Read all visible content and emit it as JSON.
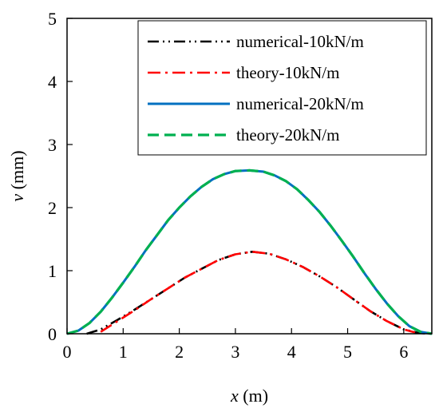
{
  "chart_data": {
    "type": "line",
    "title": "",
    "xlabel": {
      "var": "x",
      "unit": " (m)"
    },
    "ylabel": {
      "var": "v",
      "unit": " (mm)"
    },
    "xlim": [
      0,
      6.5
    ],
    "ylim": [
      0,
      5
    ],
    "xticks": [
      "0",
      "1",
      "2",
      "3",
      "4",
      "5",
      "6"
    ],
    "yticks": [
      "0",
      "1",
      "2",
      "3",
      "4",
      "5"
    ],
    "grid": false,
    "legend_position": "top-right",
    "series": [
      {
        "name": "numerical-10kN/m",
        "color": "#000000",
        "style": "dash-dot-dot",
        "x": [
          0.35,
          0.6,
          0.9,
          1.2,
          1.5,
          1.8,
          2.1,
          2.4,
          2.7,
          3.0,
          3.3,
          3.6,
          3.9,
          4.2,
          4.5,
          4.8,
          5.1,
          5.4,
          5.7,
          6.0,
          6.25,
          6.45
        ],
        "y": [
          0.0,
          0.07,
          0.22,
          0.38,
          0.55,
          0.72,
          0.89,
          1.03,
          1.17,
          1.26,
          1.3,
          1.27,
          1.18,
          1.06,
          0.91,
          0.74,
          0.55,
          0.36,
          0.2,
          0.07,
          0.015,
          0.0
        ]
      },
      {
        "name": "theory-10kN/m",
        "color": "#ff0000",
        "style": "dash-dot",
        "x": [
          0.6,
          0.9,
          1.2,
          1.5,
          1.8,
          2.1,
          2.4,
          2.7,
          3.0,
          3.3,
          3.6,
          3.9,
          4.2,
          4.5,
          4.8,
          5.1,
          5.4,
          5.7,
          6.0,
          6.2
        ],
        "y": [
          0.03,
          0.2,
          0.37,
          0.55,
          0.72,
          0.89,
          1.03,
          1.17,
          1.26,
          1.3,
          1.27,
          1.18,
          1.06,
          0.91,
          0.74,
          0.55,
          0.36,
          0.2,
          0.07,
          0.02
        ]
      },
      {
        "name": "numerical-20kN/m",
        "color": "#0070c0",
        "style": "solid",
        "x": [
          0.0,
          0.2,
          0.4,
          0.6,
          0.8,
          1.0,
          1.2,
          1.4,
          1.6,
          1.8,
          2.0,
          2.2,
          2.4,
          2.6,
          2.8,
          3.0,
          3.25,
          3.5,
          3.7,
          3.9,
          4.1,
          4.3,
          4.5,
          4.7,
          4.9,
          5.1,
          5.3,
          5.5,
          5.7,
          5.9,
          6.1,
          6.3,
          6.5
        ],
        "y": [
          0.0,
          0.05,
          0.17,
          0.35,
          0.57,
          0.81,
          1.06,
          1.32,
          1.56,
          1.8,
          2.0,
          2.18,
          2.33,
          2.45,
          2.53,
          2.58,
          2.59,
          2.57,
          2.51,
          2.42,
          2.29,
          2.12,
          1.93,
          1.71,
          1.47,
          1.22,
          0.96,
          0.71,
          0.48,
          0.28,
          0.12,
          0.03,
          0.0
        ]
      },
      {
        "name": "theory-20kN/m",
        "color": "#00b050",
        "style": "dashed",
        "x": [
          0.0,
          0.2,
          0.4,
          0.6,
          0.8,
          1.0,
          1.2,
          1.4,
          1.6,
          1.8,
          2.0,
          2.2,
          2.4,
          2.6,
          2.8,
          3.0,
          3.25,
          3.5,
          3.7,
          3.9,
          4.1,
          4.3,
          4.5,
          4.7,
          4.9,
          5.1,
          5.3,
          5.5,
          5.7,
          5.9,
          6.1,
          6.3,
          6.5
        ],
        "y": [
          0.0,
          0.05,
          0.17,
          0.35,
          0.57,
          0.81,
          1.06,
          1.32,
          1.56,
          1.8,
          2.0,
          2.18,
          2.33,
          2.45,
          2.53,
          2.58,
          2.59,
          2.57,
          2.51,
          2.42,
          2.29,
          2.12,
          1.93,
          1.71,
          1.47,
          1.22,
          0.96,
          0.71,
          0.48,
          0.28,
          0.12,
          0.03,
          0.0
        ]
      }
    ]
  }
}
